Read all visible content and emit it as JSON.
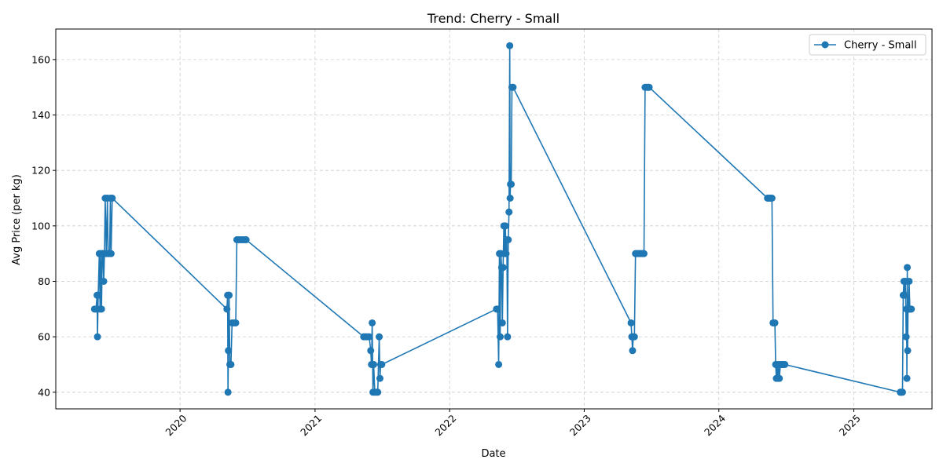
{
  "chart_data": {
    "type": "line",
    "title": "Trend: Cherry - Small",
    "xlabel": "Date",
    "ylabel": "Avg Price (per kg)",
    "x_ticks": [
      "2020",
      "2021",
      "2022",
      "2023",
      "2024",
      "2025"
    ],
    "y_ticks": [
      40,
      60,
      80,
      100,
      120,
      140,
      160
    ],
    "xlim": [
      "2019-01-29",
      "2025-08-01"
    ],
    "ylim": [
      34,
      171
    ],
    "grid": true,
    "legend": "top-right",
    "colors": {
      "series": "#1f77b4",
      "grid": "#cccccc"
    },
    "series": [
      {
        "name": "Cherry - Small",
        "marker": "circle",
        "points": [
          {
            "x": "2019-05-14",
            "y": 70
          },
          {
            "x": "2019-05-18",
            "y": 70
          },
          {
            "x": "2019-05-21",
            "y": 75
          },
          {
            "x": "2019-05-22",
            "y": 60
          },
          {
            "x": "2019-05-24",
            "y": 75
          },
          {
            "x": "2019-05-27",
            "y": 90
          },
          {
            "x": "2019-05-29",
            "y": 70
          },
          {
            "x": "2019-05-31",
            "y": 90
          },
          {
            "x": "2019-06-02",
            "y": 70
          },
          {
            "x": "2019-06-04",
            "y": 90
          },
          {
            "x": "2019-06-06",
            "y": 90
          },
          {
            "x": "2019-06-08",
            "y": 80
          },
          {
            "x": "2019-06-10",
            "y": 90
          },
          {
            "x": "2019-06-12",
            "y": 110
          },
          {
            "x": "2019-06-15",
            "y": 90
          },
          {
            "x": "2019-06-18",
            "y": 110
          },
          {
            "x": "2019-06-20",
            "y": 90
          },
          {
            "x": "2019-06-24",
            "y": 90
          },
          {
            "x": "2019-06-26",
            "y": 110
          },
          {
            "x": "2019-06-28",
            "y": 90
          },
          {
            "x": "2019-07-01",
            "y": 110
          },
          {
            "x": "2020-05-07",
            "y": 70
          },
          {
            "x": "2020-05-09",
            "y": 75
          },
          {
            "x": "2020-05-10",
            "y": 40
          },
          {
            "x": "2020-05-11",
            "y": 55
          },
          {
            "x": "2020-05-13",
            "y": 75
          },
          {
            "x": "2020-05-15",
            "y": 50
          },
          {
            "x": "2020-05-18",
            "y": 50
          },
          {
            "x": "2020-05-21",
            "y": 65
          },
          {
            "x": "2020-05-26",
            "y": 65
          },
          {
            "x": "2020-05-31",
            "y": 65
          },
          {
            "x": "2020-06-03",
            "y": 95
          },
          {
            "x": "2020-06-08",
            "y": 95
          },
          {
            "x": "2020-06-13",
            "y": 95
          },
          {
            "x": "2020-06-18",
            "y": 95
          },
          {
            "x": "2020-06-23",
            "y": 95
          },
          {
            "x": "2020-06-28",
            "y": 95
          },
          {
            "x": "2021-05-13",
            "y": 60
          },
          {
            "x": "2021-05-18",
            "y": 60
          },
          {
            "x": "2021-05-23",
            "y": 60
          },
          {
            "x": "2021-05-28",
            "y": 60
          },
          {
            "x": "2021-06-01",
            "y": 55
          },
          {
            "x": "2021-06-03",
            "y": 50
          },
          {
            "x": "2021-06-05",
            "y": 65
          },
          {
            "x": "2021-06-07",
            "y": 40
          },
          {
            "x": "2021-06-09",
            "y": 50
          },
          {
            "x": "2021-06-12",
            "y": 40
          },
          {
            "x": "2021-06-16",
            "y": 40
          },
          {
            "x": "2021-06-20",
            "y": 40
          },
          {
            "x": "2021-06-24",
            "y": 60
          },
          {
            "x": "2021-06-26",
            "y": 45
          },
          {
            "x": "2021-06-28",
            "y": 50
          },
          {
            "x": "2021-07-01",
            "y": 50
          },
          {
            "x": "2022-05-08",
            "y": 70
          },
          {
            "x": "2022-05-11",
            "y": 70
          },
          {
            "x": "2022-05-14",
            "y": 50
          },
          {
            "x": "2022-05-16",
            "y": 90
          },
          {
            "x": "2022-05-18",
            "y": 60
          },
          {
            "x": "2022-05-20",
            "y": 90
          },
          {
            "x": "2022-05-22",
            "y": 85
          },
          {
            "x": "2022-05-24",
            "y": 65
          },
          {
            "x": "2022-05-26",
            "y": 85
          },
          {
            "x": "2022-05-28",
            "y": 100
          },
          {
            "x": "2022-05-30",
            "y": 90
          },
          {
            "x": "2022-06-01",
            "y": 100
          },
          {
            "x": "2022-06-03",
            "y": 90
          },
          {
            "x": "2022-06-05",
            "y": 95
          },
          {
            "x": "2022-06-07",
            "y": 60
          },
          {
            "x": "2022-06-09",
            "y": 95
          },
          {
            "x": "2022-06-11",
            "y": 105
          },
          {
            "x": "2022-06-13",
            "y": 165
          },
          {
            "x": "2022-06-14",
            "y": 110
          },
          {
            "x": "2022-06-15",
            "y": 115
          },
          {
            "x": "2022-06-17",
            "y": 115
          },
          {
            "x": "2022-06-19",
            "y": 150
          },
          {
            "x": "2022-06-22",
            "y": 150
          },
          {
            "x": "2023-05-08",
            "y": 65
          },
          {
            "x": "2023-05-10",
            "y": 60
          },
          {
            "x": "2023-05-12",
            "y": 55
          },
          {
            "x": "2023-05-14",
            "y": 60
          },
          {
            "x": "2023-05-17",
            "y": 60
          },
          {
            "x": "2023-05-20",
            "y": 90
          },
          {
            "x": "2023-05-23",
            "y": 90
          },
          {
            "x": "2023-05-26",
            "y": 90
          },
          {
            "x": "2023-05-29",
            "y": 90
          },
          {
            "x": "2023-06-01",
            "y": 90
          },
          {
            "x": "2023-06-04",
            "y": 90
          },
          {
            "x": "2023-06-07",
            "y": 90
          },
          {
            "x": "2023-06-10",
            "y": 90
          },
          {
            "x": "2023-06-12",
            "y": 90
          },
          {
            "x": "2023-06-15",
            "y": 150
          },
          {
            "x": "2023-06-18",
            "y": 150
          },
          {
            "x": "2023-06-21",
            "y": 150
          },
          {
            "x": "2023-06-24",
            "y": 150
          },
          {
            "x": "2023-06-26",
            "y": 150
          },
          {
            "x": "2024-05-12",
            "y": 110
          },
          {
            "x": "2024-05-15",
            "y": 110
          },
          {
            "x": "2024-05-18",
            "y": 110
          },
          {
            "x": "2024-05-21",
            "y": 110
          },
          {
            "x": "2024-05-24",
            "y": 110
          },
          {
            "x": "2024-05-27",
            "y": 65
          },
          {
            "x": "2024-05-29",
            "y": 65
          },
          {
            "x": "2024-06-01",
            "y": 65
          },
          {
            "x": "2024-06-03",
            "y": 50
          },
          {
            "x": "2024-06-05",
            "y": 45
          },
          {
            "x": "2024-06-07",
            "y": 50
          },
          {
            "x": "2024-06-09",
            "y": 45
          },
          {
            "x": "2024-06-11",
            "y": 50
          },
          {
            "x": "2024-06-13",
            "y": 45
          },
          {
            "x": "2024-06-16",
            "y": 50
          },
          {
            "x": "2024-06-19",
            "y": 50
          },
          {
            "x": "2024-06-22",
            "y": 50
          },
          {
            "x": "2024-06-25",
            "y": 50
          },
          {
            "x": "2024-06-28",
            "y": 50
          },
          {
            "x": "2025-05-07",
            "y": 40
          },
          {
            "x": "2025-05-09",
            "y": 40
          },
          {
            "x": "2025-05-11",
            "y": 40
          },
          {
            "x": "2025-05-13",
            "y": 40
          },
          {
            "x": "2025-05-15",
            "y": 75
          },
          {
            "x": "2025-05-17",
            "y": 80
          },
          {
            "x": "2025-05-19",
            "y": 75
          },
          {
            "x": "2025-05-21",
            "y": 80
          },
          {
            "x": "2025-05-23",
            "y": 60
          },
          {
            "x": "2025-05-24",
            "y": 70
          },
          {
            "x": "2025-05-25",
            "y": 45
          },
          {
            "x": "2025-05-26",
            "y": 85
          },
          {
            "x": "2025-05-27",
            "y": 55
          },
          {
            "x": "2025-05-28",
            "y": 70
          },
          {
            "x": "2025-05-29",
            "y": 70
          },
          {
            "x": "2025-05-31",
            "y": 80
          },
          {
            "x": "2025-06-02",
            "y": 70
          },
          {
            "x": "2025-06-04",
            "y": 70
          },
          {
            "x": "2025-06-06",
            "y": 70
          }
        ]
      }
    ]
  }
}
